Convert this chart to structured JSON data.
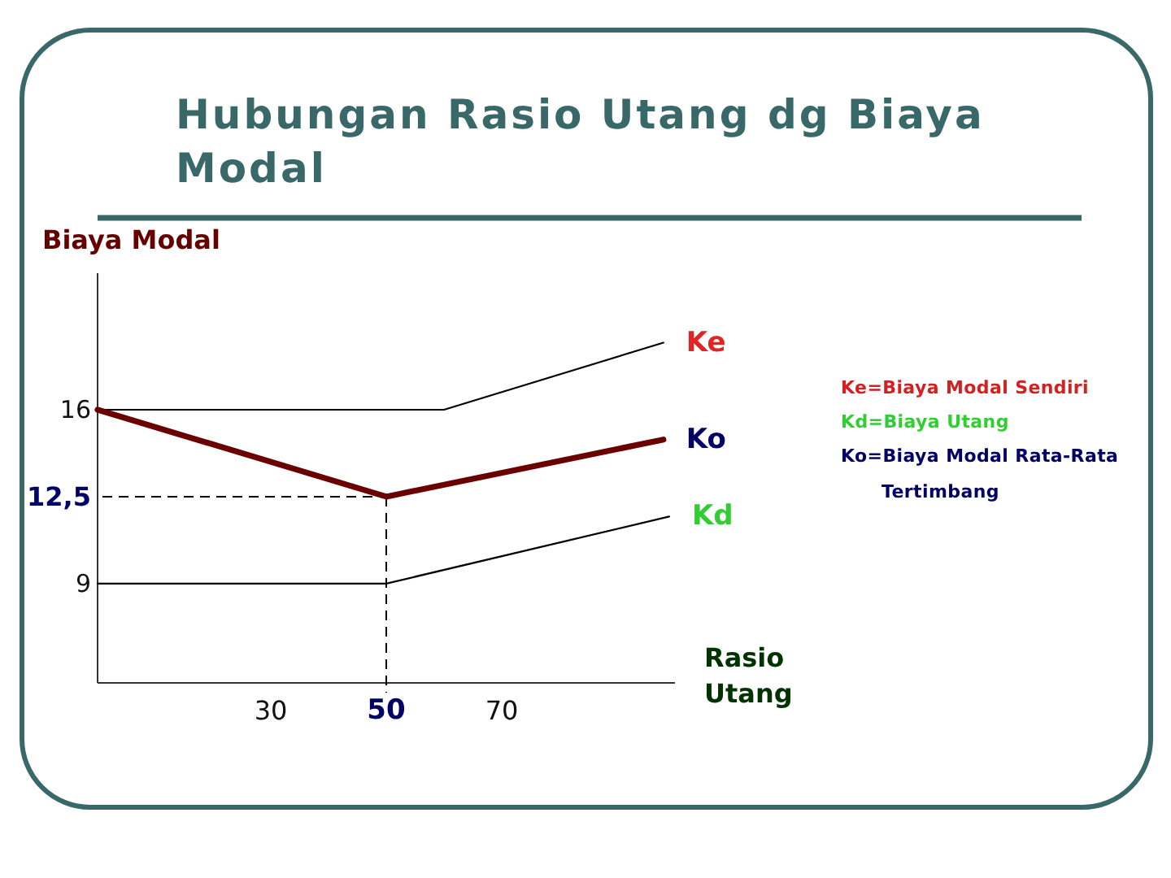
{
  "chart_data": {
    "type": "line",
    "title": "Hubungan Rasio Utang dg Biaya Modal",
    "xlabel": "Rasio Utang",
    "ylabel": "Biaya Modal",
    "annotations": [
      "Ke=Biaya Modal Sendiri",
      "Kd=Biaya Utang",
      "Ko=Biaya Modal Rata-Rata Tertimbang"
    ],
    "series": [
      {
        "name": "Ke",
        "color": "#000000",
        "x": [
          0,
          60,
          98
        ],
        "values": [
          16,
          16,
          18.7
        ]
      },
      {
        "name": "Ko",
        "color": "#6b0000",
        "x": [
          0,
          50,
          98
        ],
        "values": [
          16,
          12.5,
          14.8
        ]
      },
      {
        "name": "Kd",
        "color": "#000000",
        "x": [
          0,
          50,
          99
        ],
        "values": [
          9,
          9,
          11.7
        ]
      }
    ],
    "xlim": [
      0,
      100
    ],
    "xticks": [
      30,
      50,
      70
    ],
    "ylim": [
      5,
      21.5
    ],
    "yticks": [
      9,
      {
        "value": 12.5,
        "label": "12,5"
      },
      16
    ],
    "ref_lines": [
      {
        "axis": "y",
        "value": 12.5,
        "line_style": "dashed"
      },
      {
        "axis": "x",
        "value": 50,
        "line_style": "dashed"
      }
    ]
  }
}
